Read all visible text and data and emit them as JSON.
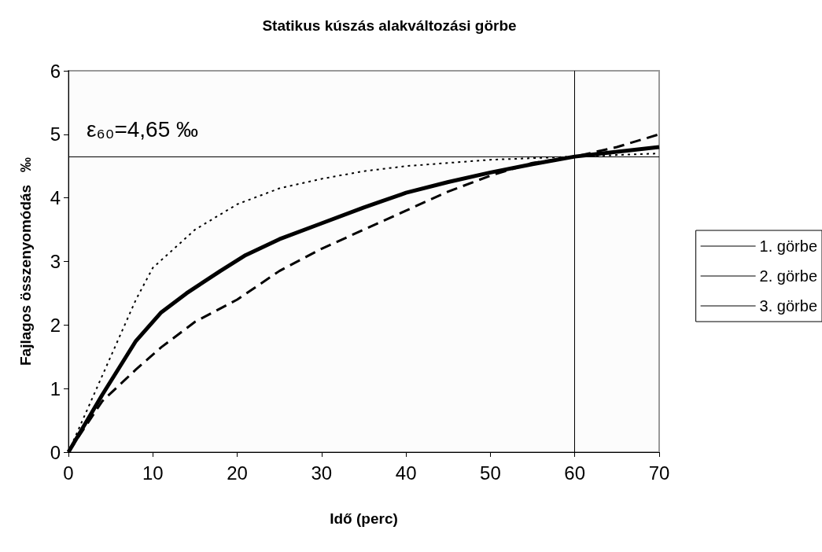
{
  "chart_data": {
    "type": "line",
    "title": "Statikus kúszás alakváltozási görbe",
    "xlabel": "Idő (perc)",
    "ylabel": "Fajlagos összenyomódás   ‰",
    "xlim": [
      0,
      70
    ],
    "xticks": [
      0,
      10,
      20,
      30,
      40,
      50,
      60,
      70
    ],
    "ylim": [
      0,
      6
    ],
    "yticks": [
      0,
      1,
      2,
      3,
      4,
      5,
      6
    ],
    "grid": false,
    "legend": "right",
    "marker": "none",
    "annotations": [
      "ε₆₀=4,65 ‰"
    ],
    "ref_lines": [
      {
        "axis": "y",
        "value": 4.65,
        "color": "#000000"
      },
      {
        "axis": "x",
        "value": 60,
        "color": "#000000"
      }
    ],
    "series": [
      {
        "name": "1. görbe",
        "color": "#000000",
        "line_style": "dotted",
        "x": [
          0,
          5,
          8,
          10,
          15,
          20,
          25,
          30,
          35,
          40,
          50,
          60,
          70
        ],
        "values": [
          0,
          1.5,
          2.4,
          2.9,
          3.5,
          3.9,
          4.15,
          4.3,
          4.42,
          4.5,
          4.6,
          4.65,
          4.7
        ]
      },
      {
        "name": "2. görbe",
        "color": "#000000",
        "line_style": "solid",
        "x": [
          0,
          4,
          8,
          11,
          14,
          18,
          21,
          25,
          30,
          35,
          40,
          45,
          50,
          55,
          60,
          70
        ],
        "values": [
          0,
          0.9,
          1.75,
          2.2,
          2.5,
          2.85,
          3.1,
          3.35,
          3.6,
          3.85,
          4.08,
          4.25,
          4.4,
          4.53,
          4.65,
          4.8
        ]
      },
      {
        "name": "3. görbe",
        "color": "#000000",
        "line_style": "dashed",
        "x": [
          0,
          4,
          8,
          11,
          15,
          20,
          25,
          30,
          35,
          40,
          45,
          50,
          55,
          60,
          65,
          70
        ],
        "values": [
          0,
          0.8,
          1.3,
          1.65,
          2.05,
          2.4,
          2.85,
          3.2,
          3.5,
          3.8,
          4.1,
          4.35,
          4.55,
          4.65,
          4.8,
          5.0
        ]
      }
    ]
  }
}
